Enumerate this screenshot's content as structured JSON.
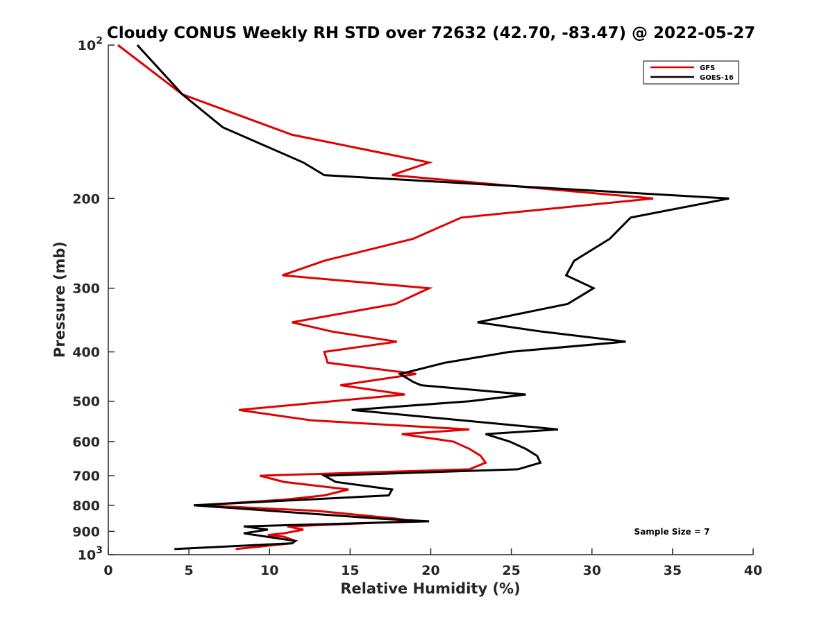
{
  "chart_data": {
    "type": "line",
    "title": "Cloudy CONUS Weekly RH STD over 72632 (42.70, -83.47) @ 2022-05-27",
    "xlabel": "Relative Humidity (%)",
    "ylabel": "Pressure (mb)",
    "xlim": [
      0,
      40
    ],
    "ylim": [
      100,
      1000
    ],
    "y_scale": "log",
    "y_reversed": true,
    "grid": false,
    "legend_position": "top-right",
    "x_ticks": [
      {
        "value": 0,
        "label": "0"
      },
      {
        "value": 5,
        "label": "5"
      },
      {
        "value": 10,
        "label": "10"
      },
      {
        "value": 15,
        "label": "15"
      },
      {
        "value": 20,
        "label": "20"
      },
      {
        "value": 25,
        "label": "25"
      },
      {
        "value": 30,
        "label": "30"
      },
      {
        "value": 35,
        "label": "35"
      },
      {
        "value": 40,
        "label": "40"
      }
    ],
    "y_ticks": [
      {
        "value": 100,
        "base": "10",
        "exp": "2"
      },
      {
        "value": 200,
        "base": "200",
        "exp": ""
      },
      {
        "value": 300,
        "base": "300",
        "exp": ""
      },
      {
        "value": 400,
        "base": "400",
        "exp": ""
      },
      {
        "value": 500,
        "base": "500",
        "exp": ""
      },
      {
        "value": 600,
        "base": "600",
        "exp": ""
      },
      {
        "value": 700,
        "base": "700",
        "exp": ""
      },
      {
        "value": 800,
        "base": "800",
        "exp": ""
      },
      {
        "value": 900,
        "base": "900",
        "exp": ""
      },
      {
        "value": 1000,
        "base": "10",
        "exp": "3"
      }
    ],
    "series": [
      {
        "name": "GFS",
        "color": "#e00000",
        "points": [
          [
            0.6,
            100
          ],
          [
            4.6,
            125
          ],
          [
            11.4,
            150
          ],
          [
            19.9,
            170
          ],
          [
            17.6,
            180
          ],
          [
            33.8,
            200
          ],
          [
            21.9,
            218
          ],
          [
            18.9,
            240
          ],
          [
            13.4,
            265
          ],
          [
            10.8,
            283
          ],
          [
            19.9,
            300
          ],
          [
            17.8,
            322
          ],
          [
            11.4,
            350
          ],
          [
            13.9,
            365
          ],
          [
            17.9,
            382
          ],
          [
            13.4,
            400
          ],
          [
            13.6,
            420
          ],
          [
            19.1,
            442
          ],
          [
            14.4,
            465
          ],
          [
            18.4,
            485
          ],
          [
            13.9,
            500
          ],
          [
            8.1,
            520
          ],
          [
            12.6,
            545
          ],
          [
            22.4,
            568
          ],
          [
            18.2,
            580
          ],
          [
            21.4,
            600
          ],
          [
            22.4,
            620
          ],
          [
            23.1,
            640
          ],
          [
            23.4,
            660
          ],
          [
            22.4,
            680
          ],
          [
            9.4,
            700
          ],
          [
            10.9,
            720
          ],
          [
            14.9,
            745
          ],
          [
            13.4,
            765
          ],
          [
            10.9,
            780
          ],
          [
            5.6,
            800
          ],
          [
            12.9,
            820
          ],
          [
            17.9,
            850
          ],
          [
            18.9,
            860
          ],
          [
            11.1,
            880
          ],
          [
            12.1,
            893
          ],
          [
            10.9,
            908
          ],
          [
            9.9,
            915
          ],
          [
            10.9,
            922
          ],
          [
            11.6,
            940
          ],
          [
            11.4,
            950
          ],
          [
            7.9,
            975
          ]
        ]
      },
      {
        "name": "GOES-16",
        "color": "#000000",
        "points": [
          [
            1.8,
            100
          ],
          [
            4.6,
            125
          ],
          [
            7.1,
            145
          ],
          [
            12.1,
            170
          ],
          [
            13.4,
            180
          ],
          [
            38.5,
            200
          ],
          [
            32.4,
            218
          ],
          [
            31.1,
            240
          ],
          [
            28.9,
            265
          ],
          [
            28.4,
            283
          ],
          [
            30.1,
            300
          ],
          [
            28.5,
            322
          ],
          [
            22.9,
            350
          ],
          [
            26.9,
            365
          ],
          [
            32.1,
            382
          ],
          [
            24.9,
            400
          ],
          [
            20.9,
            420
          ],
          [
            18.1,
            442
          ],
          [
            18.9,
            458
          ],
          [
            19.4,
            465
          ],
          [
            25.9,
            485
          ],
          [
            22.4,
            500
          ],
          [
            15.1,
            520
          ],
          [
            27.9,
            568
          ],
          [
            23.4,
            580
          ],
          [
            24.9,
            600
          ],
          [
            25.9,
            620
          ],
          [
            26.6,
            640
          ],
          [
            26.8,
            660
          ],
          [
            25.4,
            680
          ],
          [
            13.4,
            700
          ],
          [
            14.1,
            720
          ],
          [
            17.6,
            745
          ],
          [
            17.4,
            765
          ],
          [
            5.3,
            800
          ],
          [
            16.9,
            850
          ],
          [
            19.9,
            860
          ],
          [
            8.4,
            880
          ],
          [
            9.9,
            893
          ],
          [
            8.4,
            908
          ],
          [
            11.6,
            940
          ],
          [
            11.4,
            950
          ],
          [
            4.1,
            975
          ]
        ]
      }
    ],
    "annotations": [
      "Sample Size = 7"
    ]
  }
}
